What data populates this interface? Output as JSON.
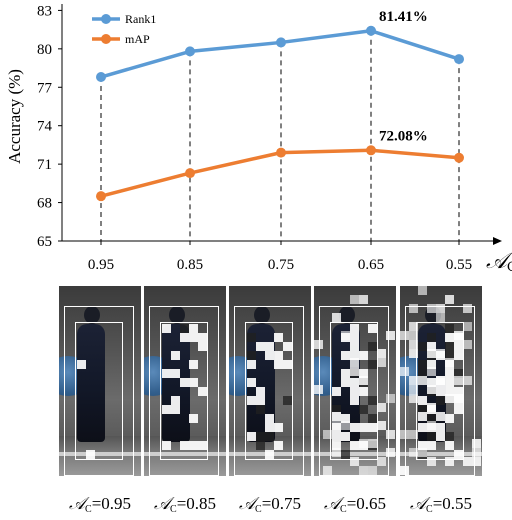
{
  "chart_data": {
    "type": "line",
    "xlabel_symbol": "𝒜",
    "xlabel_subscript": "C",
    "ylabel": "Accuracy (%)",
    "categories": [
      "0.95",
      "0.85",
      "0.75",
      "0.65",
      "0.55"
    ],
    "yticks": [
      65,
      68,
      71,
      74,
      77,
      80,
      83
    ],
    "ylim": [
      65,
      83.5
    ],
    "grid": false,
    "legend_position": "top-left",
    "series": [
      {
        "name": "Rank1",
        "color": "#5b9bd5",
        "values": [
          77.8,
          79.8,
          80.5,
          81.41,
          79.2
        ]
      },
      {
        "name": "mAP",
        "color": "#ed7d31",
        "values": [
          68.5,
          70.3,
          71.9,
          72.08,
          71.5
        ]
      }
    ],
    "annotations": [
      {
        "series": 0,
        "index": 3,
        "text": "81.41%"
      },
      {
        "series": 1,
        "index": 3,
        "text": "72.08%"
      }
    ]
  },
  "panels": [
    {
      "caption_symbol": "𝒜",
      "caption_sub": "C",
      "caption_value": "=0.95"
    },
    {
      "caption_symbol": "𝒜",
      "caption_sub": "C",
      "caption_value": "=0.85"
    },
    {
      "caption_symbol": "𝒜",
      "caption_sub": "C",
      "caption_value": "=0.75"
    },
    {
      "caption_symbol": "𝒜",
      "caption_sub": "C",
      "caption_value": "=0.65"
    },
    {
      "caption_symbol": "𝒜",
      "caption_sub": "C",
      "caption_value": "=0.55"
    }
  ]
}
